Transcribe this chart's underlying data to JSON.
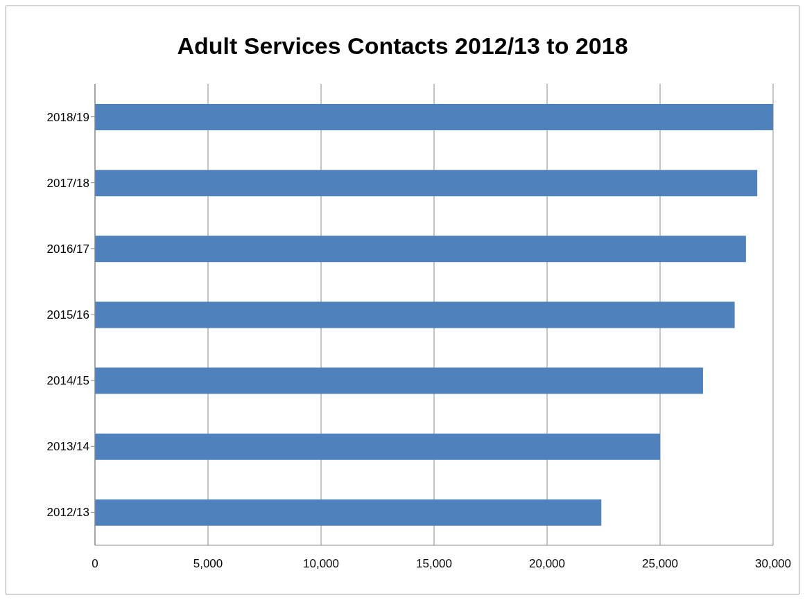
{
  "chart_data": {
    "type": "bar",
    "orientation": "horizontal",
    "title": "Adult Services Contacts 2012/13 to 2018",
    "categories": [
      "2018/19",
      "2017/18",
      "2016/17",
      "2015/16",
      "2014/15",
      "2013/14",
      "2012/13"
    ],
    "values": [
      30000,
      29300,
      28800,
      28300,
      26900,
      25000,
      22400
    ],
    "color": "#4f81bd",
    "xlim": [
      0,
      30000
    ],
    "xticks": [
      0,
      {
        "value": 5000,
        "label": "5,000"
      },
      {
        "value": 10000,
        "label": "10,000"
      },
      {
        "value": 15000,
        "label": "15,000"
      },
      {
        "value": 20000,
        "label": "20,000"
      },
      {
        "value": 25000,
        "label": "25,000"
      },
      {
        "value": 30000,
        "label": "30,000"
      }
    ],
    "grid": "x",
    "legend": false
  }
}
